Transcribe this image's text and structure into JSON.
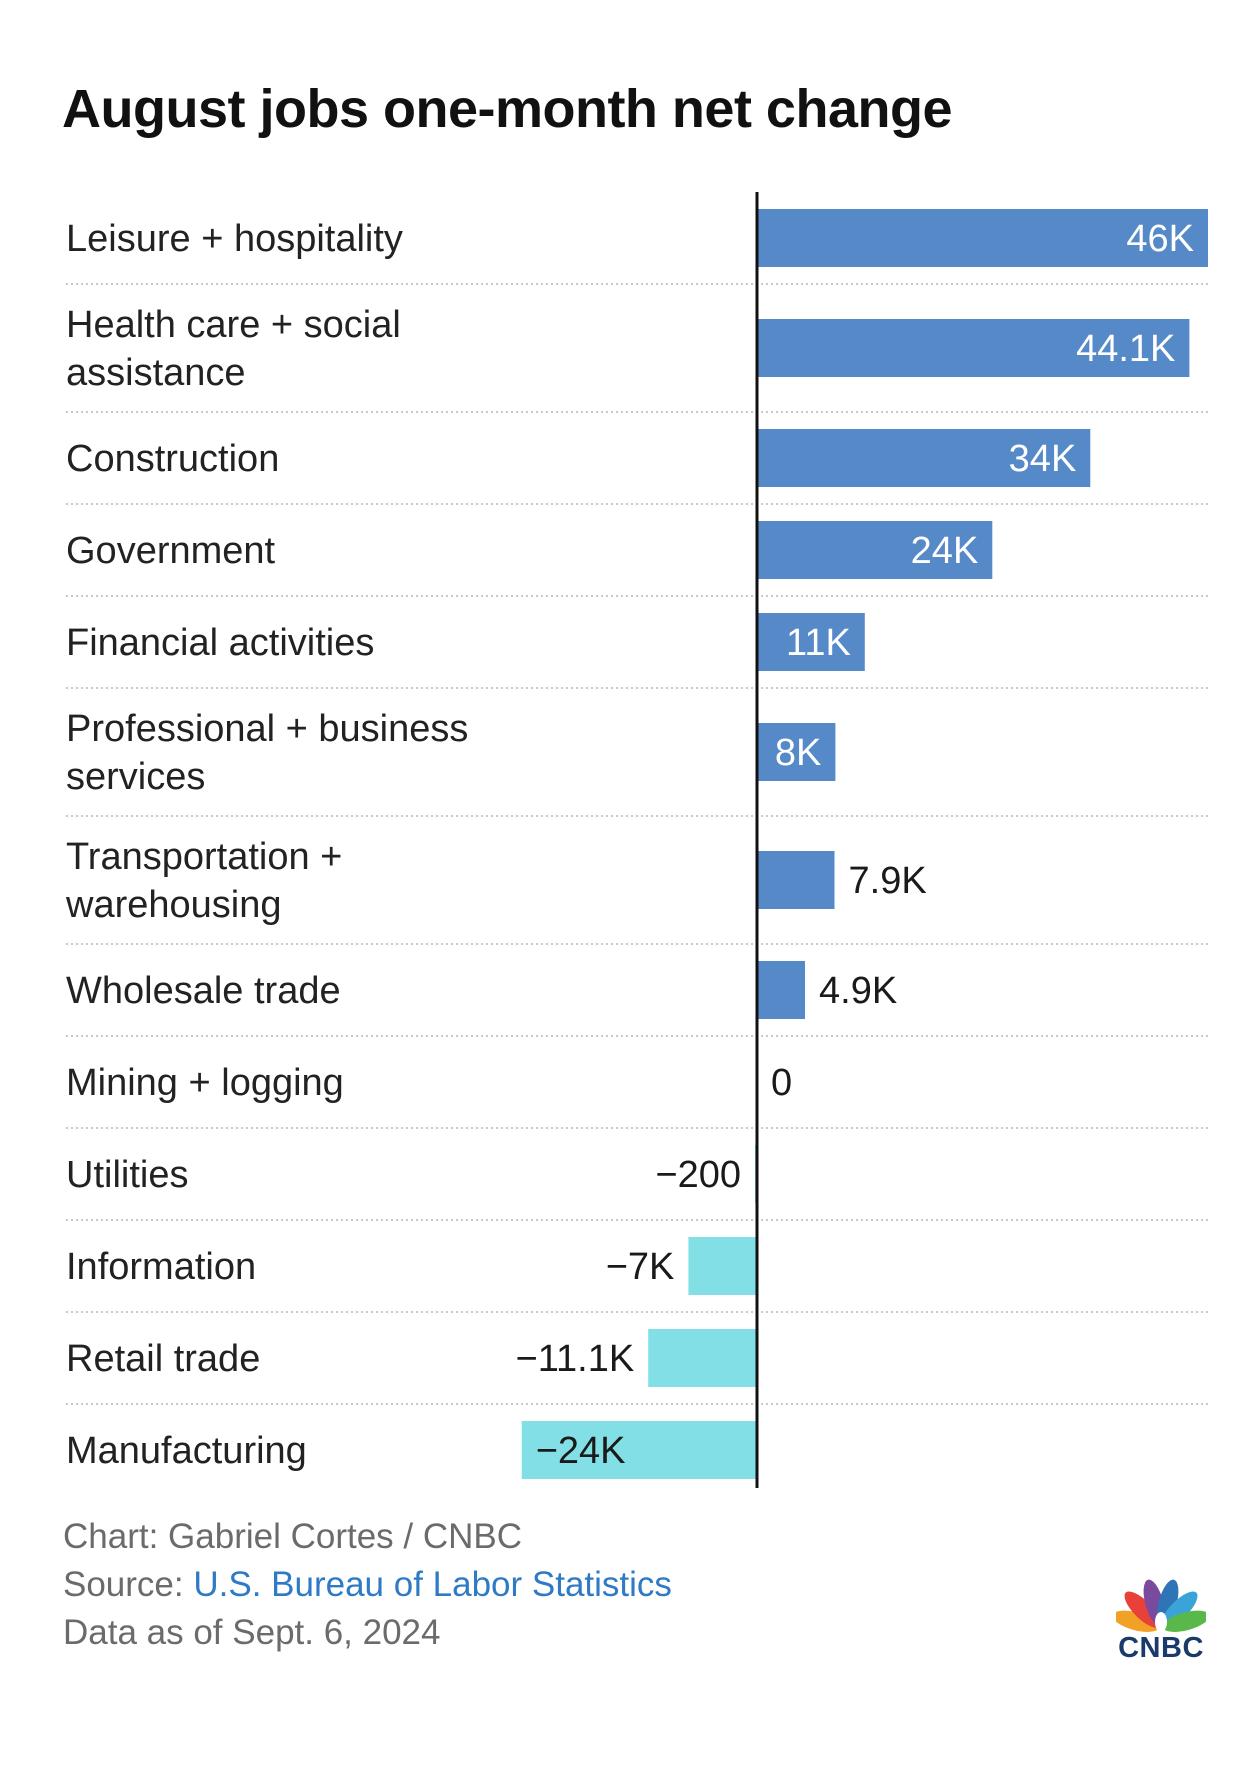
{
  "title": "August jobs one-month net change",
  "chart_data": {
    "type": "bar",
    "orientation": "horizontal",
    "title": "August jobs one-month net change",
    "categories": [
      [
        "Leisure + hospitality"
      ],
      [
        "Health care + social",
        "assistance"
      ],
      [
        "Construction"
      ],
      [
        "Government"
      ],
      [
        "Financial activities"
      ],
      [
        "Professional + business",
        "services"
      ],
      [
        "Transportation +",
        "warehousing"
      ],
      [
        "Wholesale trade"
      ],
      [
        "Mining + logging"
      ],
      [
        "Utilities"
      ],
      [
        "Information"
      ],
      [
        "Retail trade"
      ],
      [
        "Manufacturing"
      ]
    ],
    "values": [
      46000,
      44100,
      34000,
      24000,
      11000,
      8000,
      7900,
      4900,
      0,
      -200,
      -7000,
      -11100,
      -24000
    ],
    "value_labels": [
      "46K",
      "44.1K",
      "34K",
      "24K",
      "11K",
      "8K",
      "7.9K",
      "4.9K",
      "0",
      "−200",
      "−7K",
      "−11.1K",
      "−24K"
    ],
    "xlim": [
      -24000,
      46000
    ],
    "colors": {
      "positive": "#5689c8",
      "negative": "#82dfe6",
      "zero_line": "#111111",
      "separator": "#c9c9c9"
    }
  },
  "footer": {
    "credit": "Chart: Gabriel Cortes / CNBC",
    "source_prefix": "Source: ",
    "source_link": "U.S. Bureau of Labor Statistics",
    "data_as_of": "Data as of Sept. 6, 2024"
  },
  "logo": {
    "text": "CNBC",
    "icon": "peacock-icon"
  }
}
